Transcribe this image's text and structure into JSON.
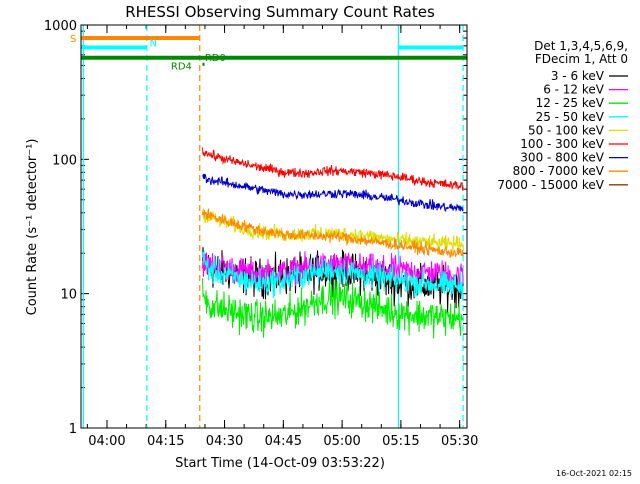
{
  "chart_data": {
    "type": "line",
    "title": "RHESSI Observing Summary Count Rates",
    "xlabel": "Start Time (14-Oct-09 03:53:22)",
    "ylabel": "Count Rate (s⁻¹ detector⁻¹)",
    "yscale": "log",
    "ylim": [
      1,
      1000
    ],
    "xlim_minutes": [
      0,
      98.5
    ],
    "x_start": "03:53:22",
    "yticks": [
      {
        "value": 1,
        "label": "1"
      },
      {
        "value": 10,
        "label": "10"
      },
      {
        "value": 100,
        "label": "100"
      },
      {
        "value": 1000,
        "label": "1000"
      }
    ],
    "xticks": [
      {
        "minute": 6.63,
        "label": "04:00"
      },
      {
        "minute": 21.63,
        "label": "04:15"
      },
      {
        "minute": 36.63,
        "label": "04:30"
      },
      {
        "minute": 51.63,
        "label": "04:45"
      },
      {
        "minute": 66.63,
        "label": "05:00"
      },
      {
        "minute": 81.63,
        "label": "05:15"
      },
      {
        "minute": 96.63,
        "label": "05:30"
      }
    ],
    "legend": {
      "header": [
        "Det 1,3,4,5,6,9,",
        "FDecim 1, Att 0"
      ],
      "position": "right"
    },
    "series": [
      {
        "name": "3 - 6 keV",
        "color": "#000000",
        "noise": 0.1,
        "points": [
          [
            31,
            17
          ],
          [
            33,
            15
          ],
          [
            38,
            14.5
          ],
          [
            45,
            13
          ],
          [
            52,
            13.5
          ],
          [
            60,
            14.5
          ],
          [
            64,
            15
          ],
          [
            68,
            14.5
          ],
          [
            74,
            13.5
          ],
          [
            81,
            12
          ],
          [
            88,
            11.5
          ],
          [
            93,
            11
          ],
          [
            97.5,
            11
          ]
        ]
      },
      {
        "name": "6 - 12 keV",
        "color": "#ff00ff",
        "noise": 0.07,
        "points": [
          [
            31,
            17
          ],
          [
            33,
            16.5
          ],
          [
            38,
            15.5
          ],
          [
            45,
            14
          ],
          [
            52,
            14.5
          ],
          [
            60,
            16
          ],
          [
            64,
            16.5
          ],
          [
            68,
            16
          ],
          [
            74,
            15.5
          ],
          [
            81,
            15
          ],
          [
            88,
            14.5
          ],
          [
            93,
            14
          ],
          [
            97.5,
            14
          ]
        ]
      },
      {
        "name": "12 - 25 keV",
        "color": "#00ee00",
        "noise": 0.09,
        "points": [
          [
            31,
            10
          ],
          [
            33,
            8.2
          ],
          [
            38,
            7.4
          ],
          [
            45,
            6.6
          ],
          [
            52,
            6.8
          ],
          [
            57,
            8
          ],
          [
            61,
            9.2
          ],
          [
            66,
            9.4
          ],
          [
            71,
            8.8
          ],
          [
            75,
            8
          ],
          [
            81,
            7.2
          ],
          [
            88,
            6.8
          ],
          [
            93,
            6.6
          ],
          [
            97.5,
            6.6
          ]
        ]
      },
      {
        "name": "25 - 50 keV",
        "color": "#00ffff",
        "noise": 0.07,
        "points": [
          [
            31,
            18
          ],
          [
            33,
            15
          ],
          [
            38,
            13.5
          ],
          [
            45,
            12
          ],
          [
            52,
            12.5
          ],
          [
            58,
            14
          ],
          [
            63,
            15
          ],
          [
            68,
            14.5
          ],
          [
            74,
            13.5
          ],
          [
            81,
            12.5
          ],
          [
            88,
            12
          ],
          [
            93,
            11.5
          ],
          [
            97.5,
            11.5
          ]
        ]
      },
      {
        "name": "50 - 100 keV",
        "color": "#dddd00",
        "noise": 0.04,
        "points": [
          [
            31,
            40
          ],
          [
            33,
            37
          ],
          [
            38,
            33
          ],
          [
            45,
            29
          ],
          [
            52,
            27.5
          ],
          [
            60,
            28
          ],
          [
            66,
            28
          ],
          [
            72,
            27
          ],
          [
            81,
            25
          ],
          [
            88,
            24
          ],
          [
            93,
            23.5
          ],
          [
            97.5,
            23.5
          ]
        ]
      },
      {
        "name": "100 - 300 keV",
        "color": "#ff0000",
        "noise": 0.025,
        "points": [
          [
            31,
            115
          ],
          [
            33,
            108
          ],
          [
            38,
            98
          ],
          [
            45,
            88
          ],
          [
            52,
            80
          ],
          [
            58,
            79
          ],
          [
            62,
            82
          ],
          [
            66,
            82
          ],
          [
            72,
            80
          ],
          [
            81,
            74
          ],
          [
            88,
            68
          ],
          [
            93,
            65
          ],
          [
            97.5,
            63
          ]
        ]
      },
      {
        "name": "300 - 800 keV",
        "color": "#0000cc",
        "noise": 0.025,
        "points": [
          [
            31,
            75
          ],
          [
            33,
            70
          ],
          [
            38,
            66
          ],
          [
            45,
            60
          ],
          [
            52,
            55
          ],
          [
            60,
            55
          ],
          [
            66,
            56
          ],
          [
            72,
            54
          ],
          [
            81,
            50
          ],
          [
            88,
            46
          ],
          [
            93,
            44
          ],
          [
            97.5,
            43
          ]
        ]
      },
      {
        "name": "800 - 7000 keV",
        "color": "#ff8800",
        "noise": 0.03,
        "points": [
          [
            31,
            40
          ],
          [
            33,
            38
          ],
          [
            38,
            34
          ],
          [
            45,
            30
          ],
          [
            52,
            27.5
          ],
          [
            60,
            27
          ],
          [
            66,
            26.5
          ],
          [
            72,
            25
          ],
          [
            81,
            23
          ],
          [
            88,
            21.5
          ],
          [
            93,
            20.5
          ],
          [
            97.5,
            20
          ]
        ]
      },
      {
        "name": "7000 - 15000 keV",
        "color": "#804000",
        "noise": 0,
        "points": []
      }
    ],
    "vlines": [
      {
        "minute": 0.6,
        "color": "#00ffff",
        "style": "solid"
      },
      {
        "minute": 16.8,
        "color": "#00ffff",
        "style": "dashed"
      },
      {
        "minute": 30.3,
        "color": "#ff8800",
        "style": "dashed"
      },
      {
        "minute": 81.0,
        "color": "#00ffff",
        "style": "solid"
      },
      {
        "minute": 97.5,
        "color": "#00ffff",
        "style": "dashed"
      }
    ],
    "flag_bars": [
      {
        "label": "S",
        "color": "#ff8800",
        "y": 800,
        "from": 0,
        "to": 30.3,
        "gaps": []
      },
      {
        "label": "N",
        "color": "#00ffff",
        "y": 680,
        "from": 0,
        "to": 97.5,
        "gaps": [
          [
            16.8,
            81.0
          ]
        ]
      },
      {
        "label": "RD0",
        "color": "#008800",
        "y": 570,
        "from": 0,
        "to": 98.5,
        "gaps": []
      },
      {
        "label": "RD4",
        "color": "#008800",
        "y": 510,
        "from": 31,
        "to": 31.1,
        "gaps": []
      }
    ]
  },
  "footer": {
    "timestamp": "16-Oct-2021 02:15"
  }
}
